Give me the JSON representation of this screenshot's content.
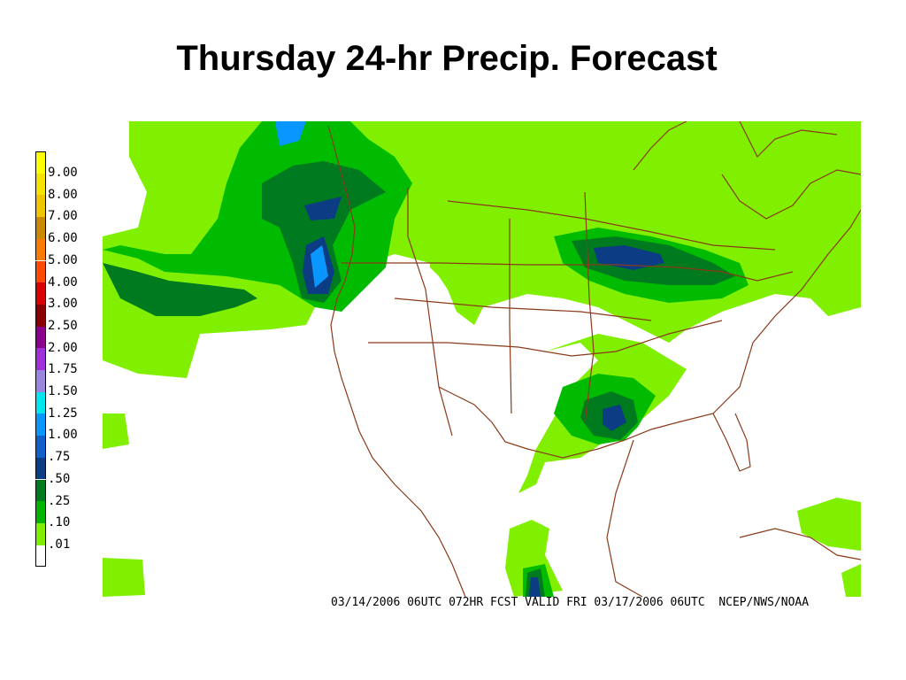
{
  "title": "Thursday 24-hr Precip. Forecast",
  "legend": [
    {
      "label": "9.00",
      "color": "#ffff00"
    },
    {
      "label": "8.00",
      "color": "#f7e300"
    },
    {
      "label": "7.00",
      "color": "#efc400"
    },
    {
      "label": "6.00",
      "color": "#c88a00"
    },
    {
      "label": "5.00",
      "color": "#ff7a00"
    },
    {
      "label": "4.00",
      "color": "#ff4a00"
    },
    {
      "label": "3.00",
      "color": "#d80000"
    },
    {
      "label": "2.50",
      "color": "#8a0000"
    },
    {
      "label": "2.00",
      "color": "#8a008a"
    },
    {
      "label": "1.75",
      "color": "#a030d8"
    },
    {
      "label": "1.50",
      "color": "#9a86dd"
    },
    {
      "label": "1.25",
      "color": "#00e6ef"
    },
    {
      "label": "1.00",
      "color": "#0a96ff"
    },
    {
      "label": ".75",
      "color": "#1060c8"
    },
    {
      "label": ".50",
      "color": "#0c3c84"
    },
    {
      "label": ".25",
      "color": "#007a1e"
    },
    {
      "label": ".10",
      "color": "#00b400"
    },
    {
      "label": ".01",
      "color": "#7ff000"
    },
    {
      "label": "",
      "color": "#ffffff"
    }
  ],
  "map": {
    "colors": {
      "light_green": "#80f000",
      "medium_green": "#00bb00",
      "dark_green": "#007a1e",
      "navy": "#0c3c84",
      "blue": "#1060c8",
      "sky": "#0a96ff",
      "border": "#8a3a1a"
    }
  },
  "footer": {
    "run": "03/14/2006 06UTC",
    "forecast": "072HR FCST VALID FRI 03/17/2006 06UTC",
    "source": "NCEP/NWS/NOAA"
  }
}
